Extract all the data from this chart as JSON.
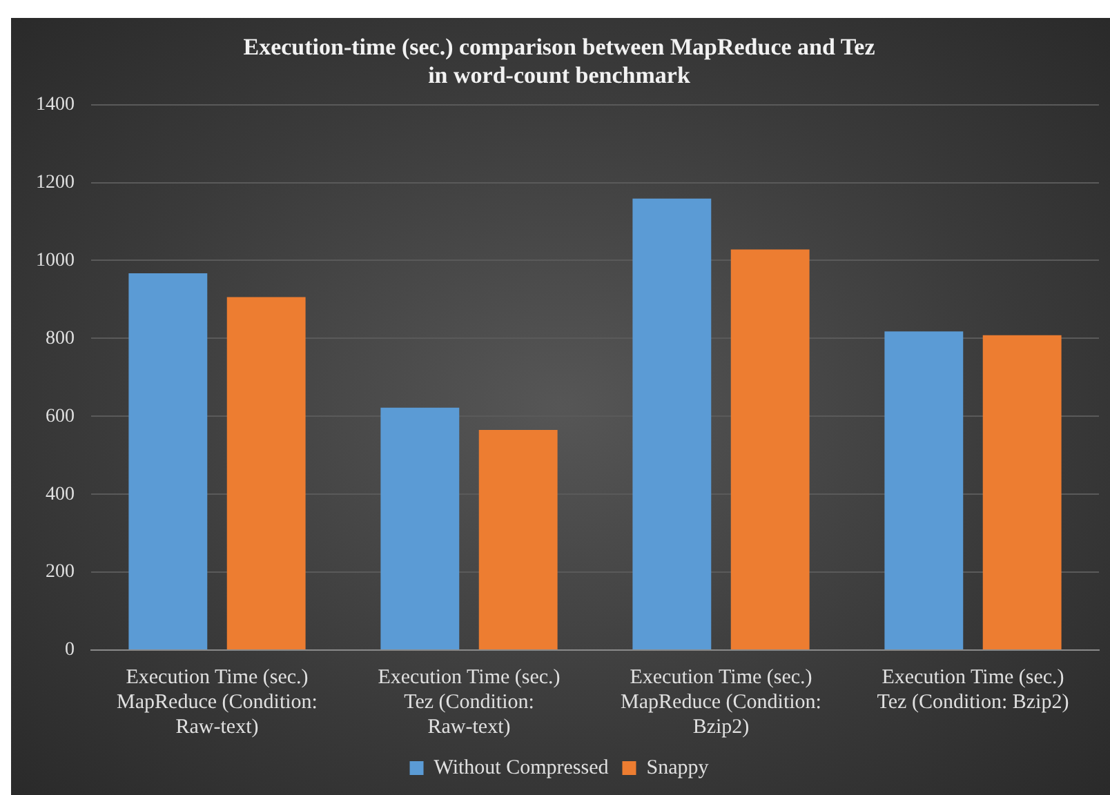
{
  "chart_data": {
    "type": "bar",
    "title": "Execution-time (sec.) comparison between MapReduce and Tez in word-count benchmark",
    "categories": [
      "Execution Time (sec.) MapReduce (Condition: Raw-text)",
      "Execution Time (sec.) Tez (Condition: Raw-text)",
      "Execution Time (sec.) MapReduce (Condition: Bzip2)",
      "Execution Time (sec.) Tez (Condition: Bzip2)"
    ],
    "series": [
      {
        "name": "Without Compressed",
        "color": "#5b9bd5",
        "values": [
          967,
          622,
          1159,
          818
        ]
      },
      {
        "name": "Snappy",
        "color": "#ed7d31",
        "values": [
          906,
          565,
          1028,
          808
        ]
      }
    ],
    "ylim": [
      0,
      1400
    ],
    "yticks": [
      0,
      200,
      400,
      600,
      800,
      1000,
      1200,
      1400
    ],
    "grid": "y",
    "legend": "bottom"
  }
}
